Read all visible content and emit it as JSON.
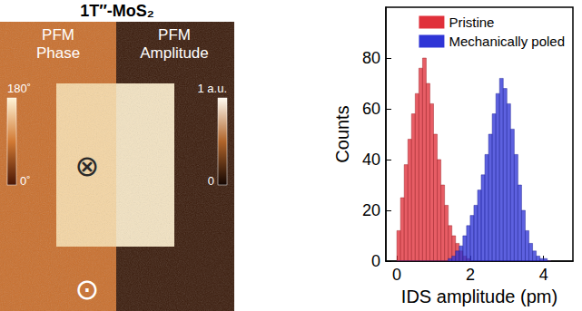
{
  "image_panel": {
    "title": "1T″-MoS₂",
    "phase": {
      "label": "PFM Phase",
      "scale_max": "180˚",
      "scale_min": "0˚"
    },
    "amplitude": {
      "label": "PFM Amplitude",
      "scale_max": "1 a.u.",
      "scale_min": "0"
    },
    "inside_symbol": "⊗",
    "outside_symbol": "⊙"
  },
  "chart_data": {
    "type": "histogram",
    "x_label": "IDS amplitude (pm)",
    "y_label": "Counts",
    "bins": [
      0,
      0.1,
      0.2,
      0.3,
      0.4,
      0.5,
      0.6,
      0.7,
      0.8,
      0.9,
      1.0,
      1.1,
      1.2,
      1.3,
      1.4,
      1.5,
      1.6,
      1.7,
      1.8,
      1.9,
      2.0,
      2.1,
      2.2,
      2.3,
      2.4,
      2.5,
      2.6,
      2.7,
      2.8,
      2.9,
      3.0,
      3.1,
      3.2,
      3.3,
      3.4,
      3.5,
      3.6,
      3.7,
      3.8,
      3.9,
      4.0,
      4.1,
      4.2
    ],
    "series": [
      {
        "name": "Pristine",
        "color": "#e0303a",
        "values": [
          12,
          25,
          38,
          48,
          58,
          66,
          76,
          80,
          70,
          62,
          50,
          40,
          30,
          22,
          14,
          10,
          7,
          4,
          2,
          1,
          0,
          0,
          0,
          0,
          0,
          0,
          0,
          0,
          0,
          0,
          0,
          0,
          0,
          0,
          0,
          0,
          0,
          0,
          0,
          0,
          0,
          0
        ]
      },
      {
        "name": "Mechanically poled",
        "color": "#2f35d6",
        "values": [
          0,
          0,
          0,
          0,
          0,
          0,
          0,
          0,
          0,
          0,
          0,
          0,
          0,
          0,
          1,
          2,
          4,
          6,
          10,
          14,
          18,
          22,
          28,
          34,
          42,
          50,
          58,
          66,
          72,
          68,
          62,
          52,
          42,
          30,
          20,
          12,
          7,
          4,
          2,
          1,
          1,
          0
        ]
      }
    ],
    "xlim": [
      -0.3,
      4.8
    ],
    "xticks": [
      0,
      2,
      4
    ],
    "ylim": [
      0,
      100
    ],
    "yticks": [
      0,
      20,
      40,
      60,
      80
    ],
    "grid": false,
    "legend": "upper right"
  }
}
